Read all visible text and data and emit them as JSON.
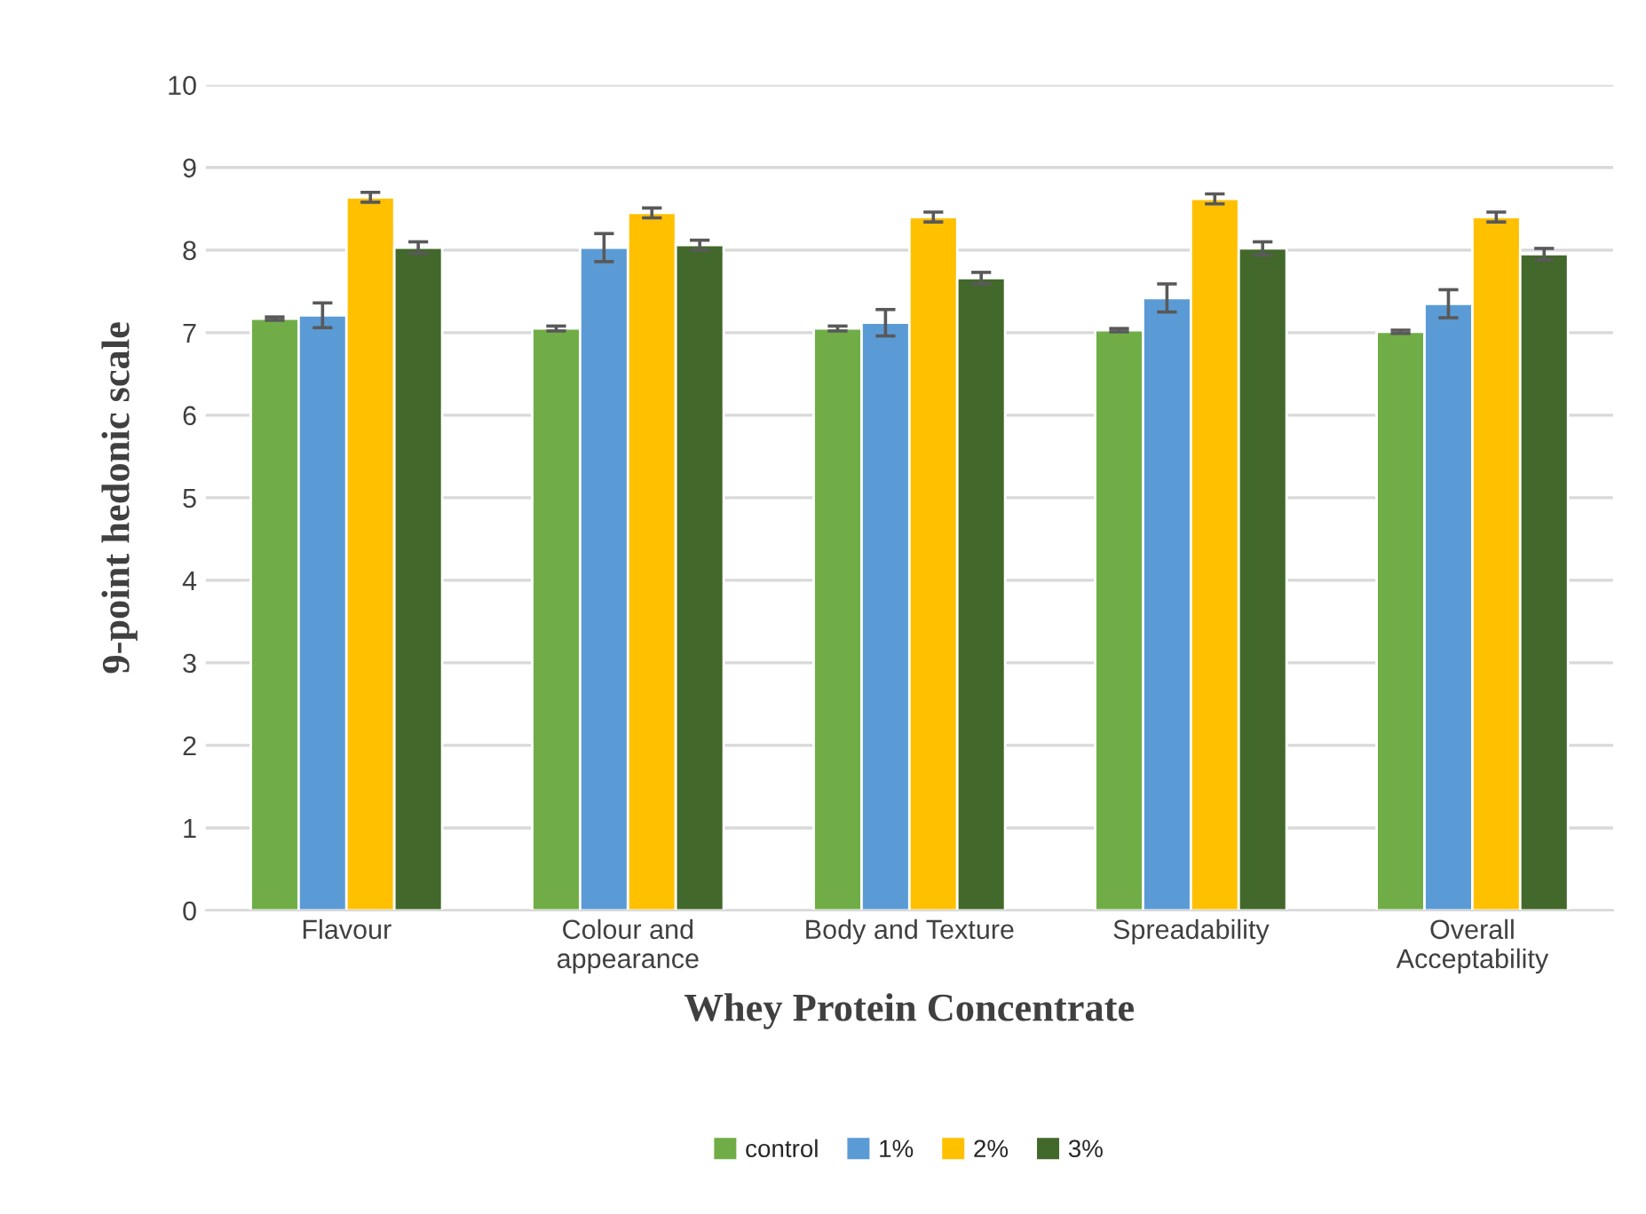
{
  "chart_data": {
    "type": "bar",
    "xlabel": "Whey Protein Concentrate",
    "ylabel": "9-point hedonic scale",
    "categories": [
      "Flavour",
      "Colour and\nappearance",
      "Body and Texture",
      "Spreadability",
      "Overall\nAcceptability"
    ],
    "series": [
      {
        "name": "control",
        "color": "#70ad47",
        "values": [
          7.17,
          7.05,
          7.05,
          7.03,
          7.01
        ],
        "errors": [
          0.02,
          0.03,
          0.03,
          0.02,
          0.02
        ]
      },
      {
        "name": "1%",
        "color": "#5b9bd5",
        "values": [
          7.21,
          8.03,
          7.12,
          7.42,
          7.35
        ],
        "errors": [
          0.15,
          0.17,
          0.16,
          0.17,
          0.17
        ]
      },
      {
        "name": "2%",
        "color": "#ffc000",
        "values": [
          8.64,
          8.45,
          8.4,
          8.62,
          8.4
        ],
        "errors": [
          0.06,
          0.06,
          0.06,
          0.06,
          0.06
        ]
      },
      {
        "name": "3%",
        "color": "#43682b",
        "values": [
          8.03,
          8.06,
          7.66,
          8.02,
          7.95
        ],
        "errors": [
          0.07,
          0.06,
          0.07,
          0.08,
          0.07
        ]
      }
    ],
    "ylim": [
      0,
      10
    ],
    "yticks": [
      0,
      1,
      2,
      3,
      4,
      5,
      6,
      7,
      8,
      9,
      10
    ],
    "grid": "y",
    "legend": "bottom"
  }
}
